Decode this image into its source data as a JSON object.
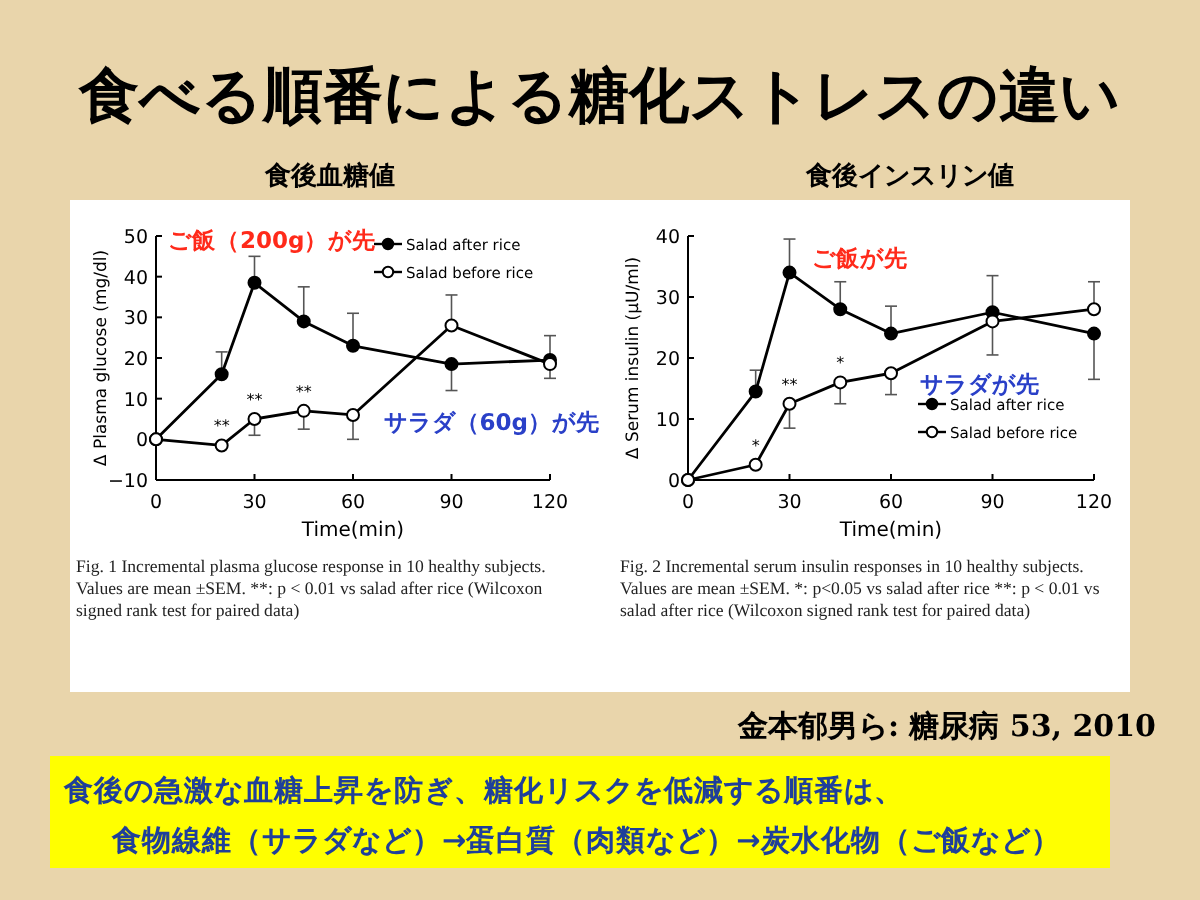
{
  "chart_data": [
    {
      "type": "line",
      "title": "食後血糖値",
      "xlabel": "Time(min)",
      "ylabel": "Δ Plasma glucose (mg/dl)",
      "x": [
        0,
        20,
        30,
        45,
        60,
        90,
        120
      ],
      "xlim": [
        0,
        120
      ],
      "xticks": [
        0,
        30,
        60,
        90,
        120
      ],
      "ylim": [
        -10,
        50
      ],
      "yticks": [
        -10,
        0,
        10,
        20,
        30,
        40,
        50
      ],
      "marker": "circle",
      "legend": "top right",
      "grid": false,
      "series": [
        {
          "name": "Salad after rice",
          "color": "#000000",
          "values": [
            0,
            16,
            38.5,
            29,
            23,
            18.5,
            19.5
          ],
          "errors": [
            null,
            [
              16,
              21.5
            ],
            [
              38.5,
              45
            ],
            [
              29,
              37.5
            ],
            [
              23,
              31
            ],
            [
              12,
              18.5
            ],
            [
              19.5,
              25.5
            ]
          ]
        },
        {
          "name": "Salad before rice",
          "color": "#000000",
          "values": [
            0,
            -1.5,
            5,
            7,
            6,
            28,
            18.5
          ],
          "errors": [
            null,
            null,
            [
              1,
              5
            ],
            [
              2.5,
              7
            ],
            [
              0,
              6
            ],
            [
              28,
              35.5
            ],
            [
              15,
              18.5
            ]
          ]
        }
      ],
      "annotations": [
        {
          "text": "**",
          "x": 20,
          "y": -1.5
        },
        {
          "text": "**",
          "x": 30,
          "y": 5
        },
        {
          "text": "**",
          "x": 45,
          "y": 7
        },
        "ご飯（200g）が先",
        "サラダ（60g）が先",
        "Fig. 1 Incremental plasma glucose response in 10 healthy subjects.",
        "Values are mean ±SEM. **: p < 0.01 vs salad after rice (Wilcoxon signed rank test for paired data)"
      ]
    },
    {
      "type": "line",
      "title": "食後インスリン値",
      "xlabel": "Time(min)",
      "ylabel": "Δ Serum insulin (μU/ml)",
      "x": [
        0,
        20,
        30,
        45,
        60,
        90,
        120
      ],
      "xlim": [
        0,
        120
      ],
      "xticks": [
        0,
        30,
        60,
        90,
        120
      ],
      "ylim": [
        0,
        40
      ],
      "yticks": [
        0,
        10,
        20,
        30,
        40
      ],
      "marker": "circle",
      "legend": "bottom right",
      "grid": false,
      "series": [
        {
          "name": "Salad after rice",
          "color": "#000000",
          "values": [
            0,
            14.5,
            34,
            28,
            24,
            27.5,
            24
          ],
          "errors": [
            null,
            [
              14.5,
              18
            ],
            [
              34,
              39.5
            ],
            [
              28,
              32.5
            ],
            [
              24,
              28.5
            ],
            [
              27.5,
              33.5
            ],
            [
              16.5,
              24
            ]
          ]
        },
        {
          "name": "Salad before rice",
          "color": "#000000",
          "values": [
            0,
            2.5,
            12.5,
            16,
            17.5,
            26,
            28
          ],
          "errors": [
            null,
            null,
            [
              8.5,
              12.5
            ],
            [
              12.5,
              16
            ],
            [
              14,
              17.5
            ],
            [
              20.5,
              26
            ],
            [
              28,
              32.5
            ]
          ]
        }
      ],
      "annotations": [
        {
          "text": "*",
          "x": 20,
          "y": 2.5
        },
        {
          "text": "**",
          "x": 30,
          "y": 12.5
        },
        {
          "text": "*",
          "x": 45,
          "y": 16
        },
        "ご飯が先",
        "サラダが先",
        "Fig. 2 Incremental serum insulin responses in 10 healthy subjects.",
        "Values are mean ±SEM. *: p<0.05 vs salad after rice **: p < 0.01 vs salad after rice (Wilcoxon signed rank test for paired data)"
      ]
    },
    {
      "type": "other",
      "title": "食べる順番による糖化ストレスの違い",
      "annotations": [
        "金本郁男ら: 糖尿病 53, 2010",
        "食後の急激な血糖上昇を防ぎ、糖化リスクを低減する順番は、",
        "食物線維（サラダなど）→蛋白質（肉類など）→炭水化物（ご飯など）"
      ]
    }
  ]
}
